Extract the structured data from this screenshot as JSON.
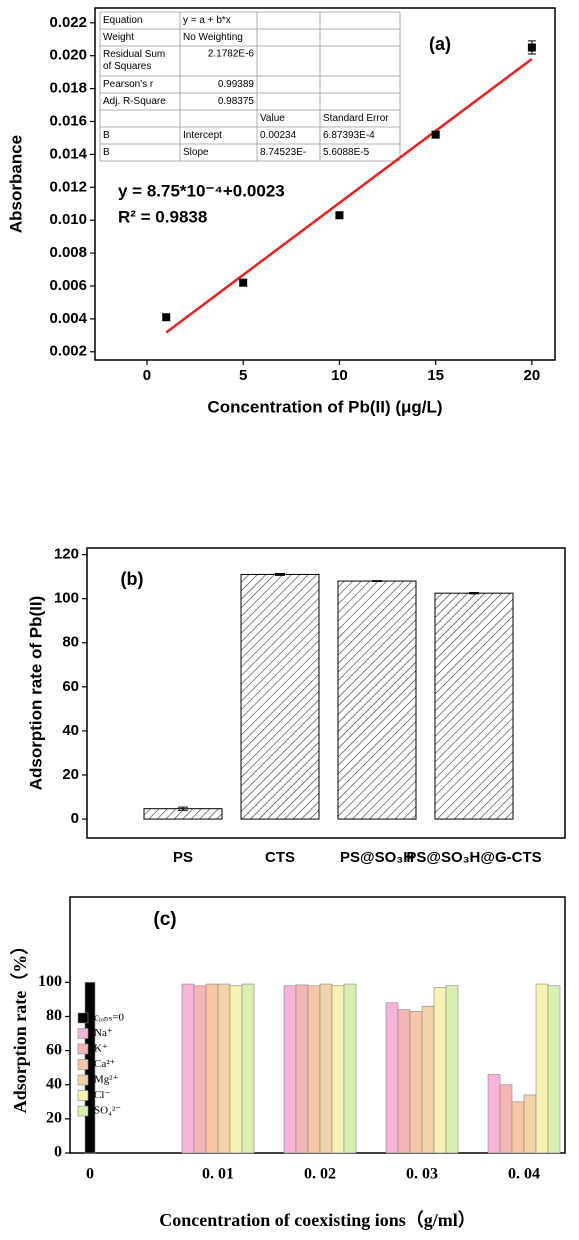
{
  "chart_data": [
    {
      "type": "scatter",
      "title": "(a)",
      "x_label": "Concentration of Pb(II) (μg/L)",
      "y_label": "Absorbance",
      "x": [
        1,
        5,
        10,
        15,
        20
      ],
      "values": [
        0.0041,
        0.0062,
        0.0103,
        0.0152,
        0.0205
      ],
      "errors": [
        0.0002,
        0.0002,
        0.0002,
        0.0002,
        0.0004
      ],
      "color": "#000000",
      "line_color": "#e8211f",
      "fit": {
        "slope": 0.000875,
        "intercept": 0.0023
      },
      "annotations": [
        "y = 8.75*10⁻⁴+0.0023",
        "R² = 0.9838"
      ],
      "xlim": [
        -2.7,
        21.2
      ],
      "xticks": [
        0,
        5,
        10,
        15,
        20
      ],
      "ylim": [
        0.0015,
        0.0229
      ],
      "yticks": [
        0.002,
        0.004,
        0.006,
        0.008,
        {
          "value": 0.01,
          "label": "0.010"
        },
        0.012,
        0.014,
        0.016,
        0.018,
        {
          "value": 0.02,
          "label": "0.020"
        },
        0.022
      ],
      "table": {
        "rows": [
          [
            "Equation",
            "y = a + b*x",
            null,
            null
          ],
          [
            "Weight",
            "No Weighting",
            null,
            null
          ],
          [
            "Residual Sum of Squares",
            "2.1782E-6",
            null,
            null
          ],
          [
            "Pearson's r",
            "0.99389",
            null,
            null
          ],
          [
            "Adj. R-Square",
            "0.98375",
            null,
            null
          ],
          [
            null,
            null,
            "Value",
            "Standard Error"
          ],
          [
            "B",
            "Intercept",
            "0.00234",
            "6.87393E-4"
          ],
          [
            "B",
            "Slope",
            "8.74523E-",
            "5.6088E-5"
          ]
        ]
      }
    },
    {
      "type": "bar",
      "title": "(b)",
      "y_label": "Adsorption rate of Pb(II)",
      "categories": [
        "PS",
        "CTS",
        "PS@SO₃H",
        "PS@SO₃H@G-CTS"
      ],
      "values": [
        4.7,
        111,
        108,
        102.5
      ],
      "errors": [
        0.7,
        0.4,
        0.2,
        0.3
      ],
      "color": "#ffffff",
      "hatch": true,
      "ylim": [
        -8.6,
        123
      ],
      "yticks": [
        0,
        20,
        40,
        60,
        80,
        100,
        120
      ]
    },
    {
      "type": "bar",
      "title": "(c)",
      "x_label": "Concentration of coexisting ions（g/ml）",
      "y_label": "Adsorption rate（%）",
      "categories": [
        "0",
        "0. 01",
        "0. 02",
        "0. 03",
        "0. 04"
      ],
      "series": [
        {
          "name": "cᵢₒₙₛ=0",
          "color": "#000000",
          "values": [
            100,
            null,
            null,
            null,
            null
          ]
        },
        {
          "name": "Na⁺",
          "color": "#f7b3d9",
          "values": [
            null,
            99,
            98,
            88,
            46
          ]
        },
        {
          "name": "K⁺",
          "color": "#f5b5b5",
          "values": [
            null,
            98,
            98.5,
            84,
            40
          ]
        },
        {
          "name": "Ca²⁺",
          "color": "#f8c6a6",
          "values": [
            null,
            99,
            98,
            83,
            30
          ]
        },
        {
          "name": "Mg²⁺",
          "color": "#f0d3a6",
          "values": [
            null,
            99,
            99,
            86,
            34
          ]
        },
        {
          "name": "Cl⁻",
          "color": "#f7f2b0",
          "values": [
            null,
            98,
            98,
            97,
            99
          ]
        },
        {
          "name": "SO₄²⁻",
          "color": "#d8efb0",
          "values": [
            null,
            99,
            99,
            98,
            98
          ]
        }
      ],
      "legend": "upper left",
      "ylim": [
        0,
        150
      ],
      "yticks": [
        0,
        20,
        40,
        60,
        80,
        100
      ]
    }
  ]
}
